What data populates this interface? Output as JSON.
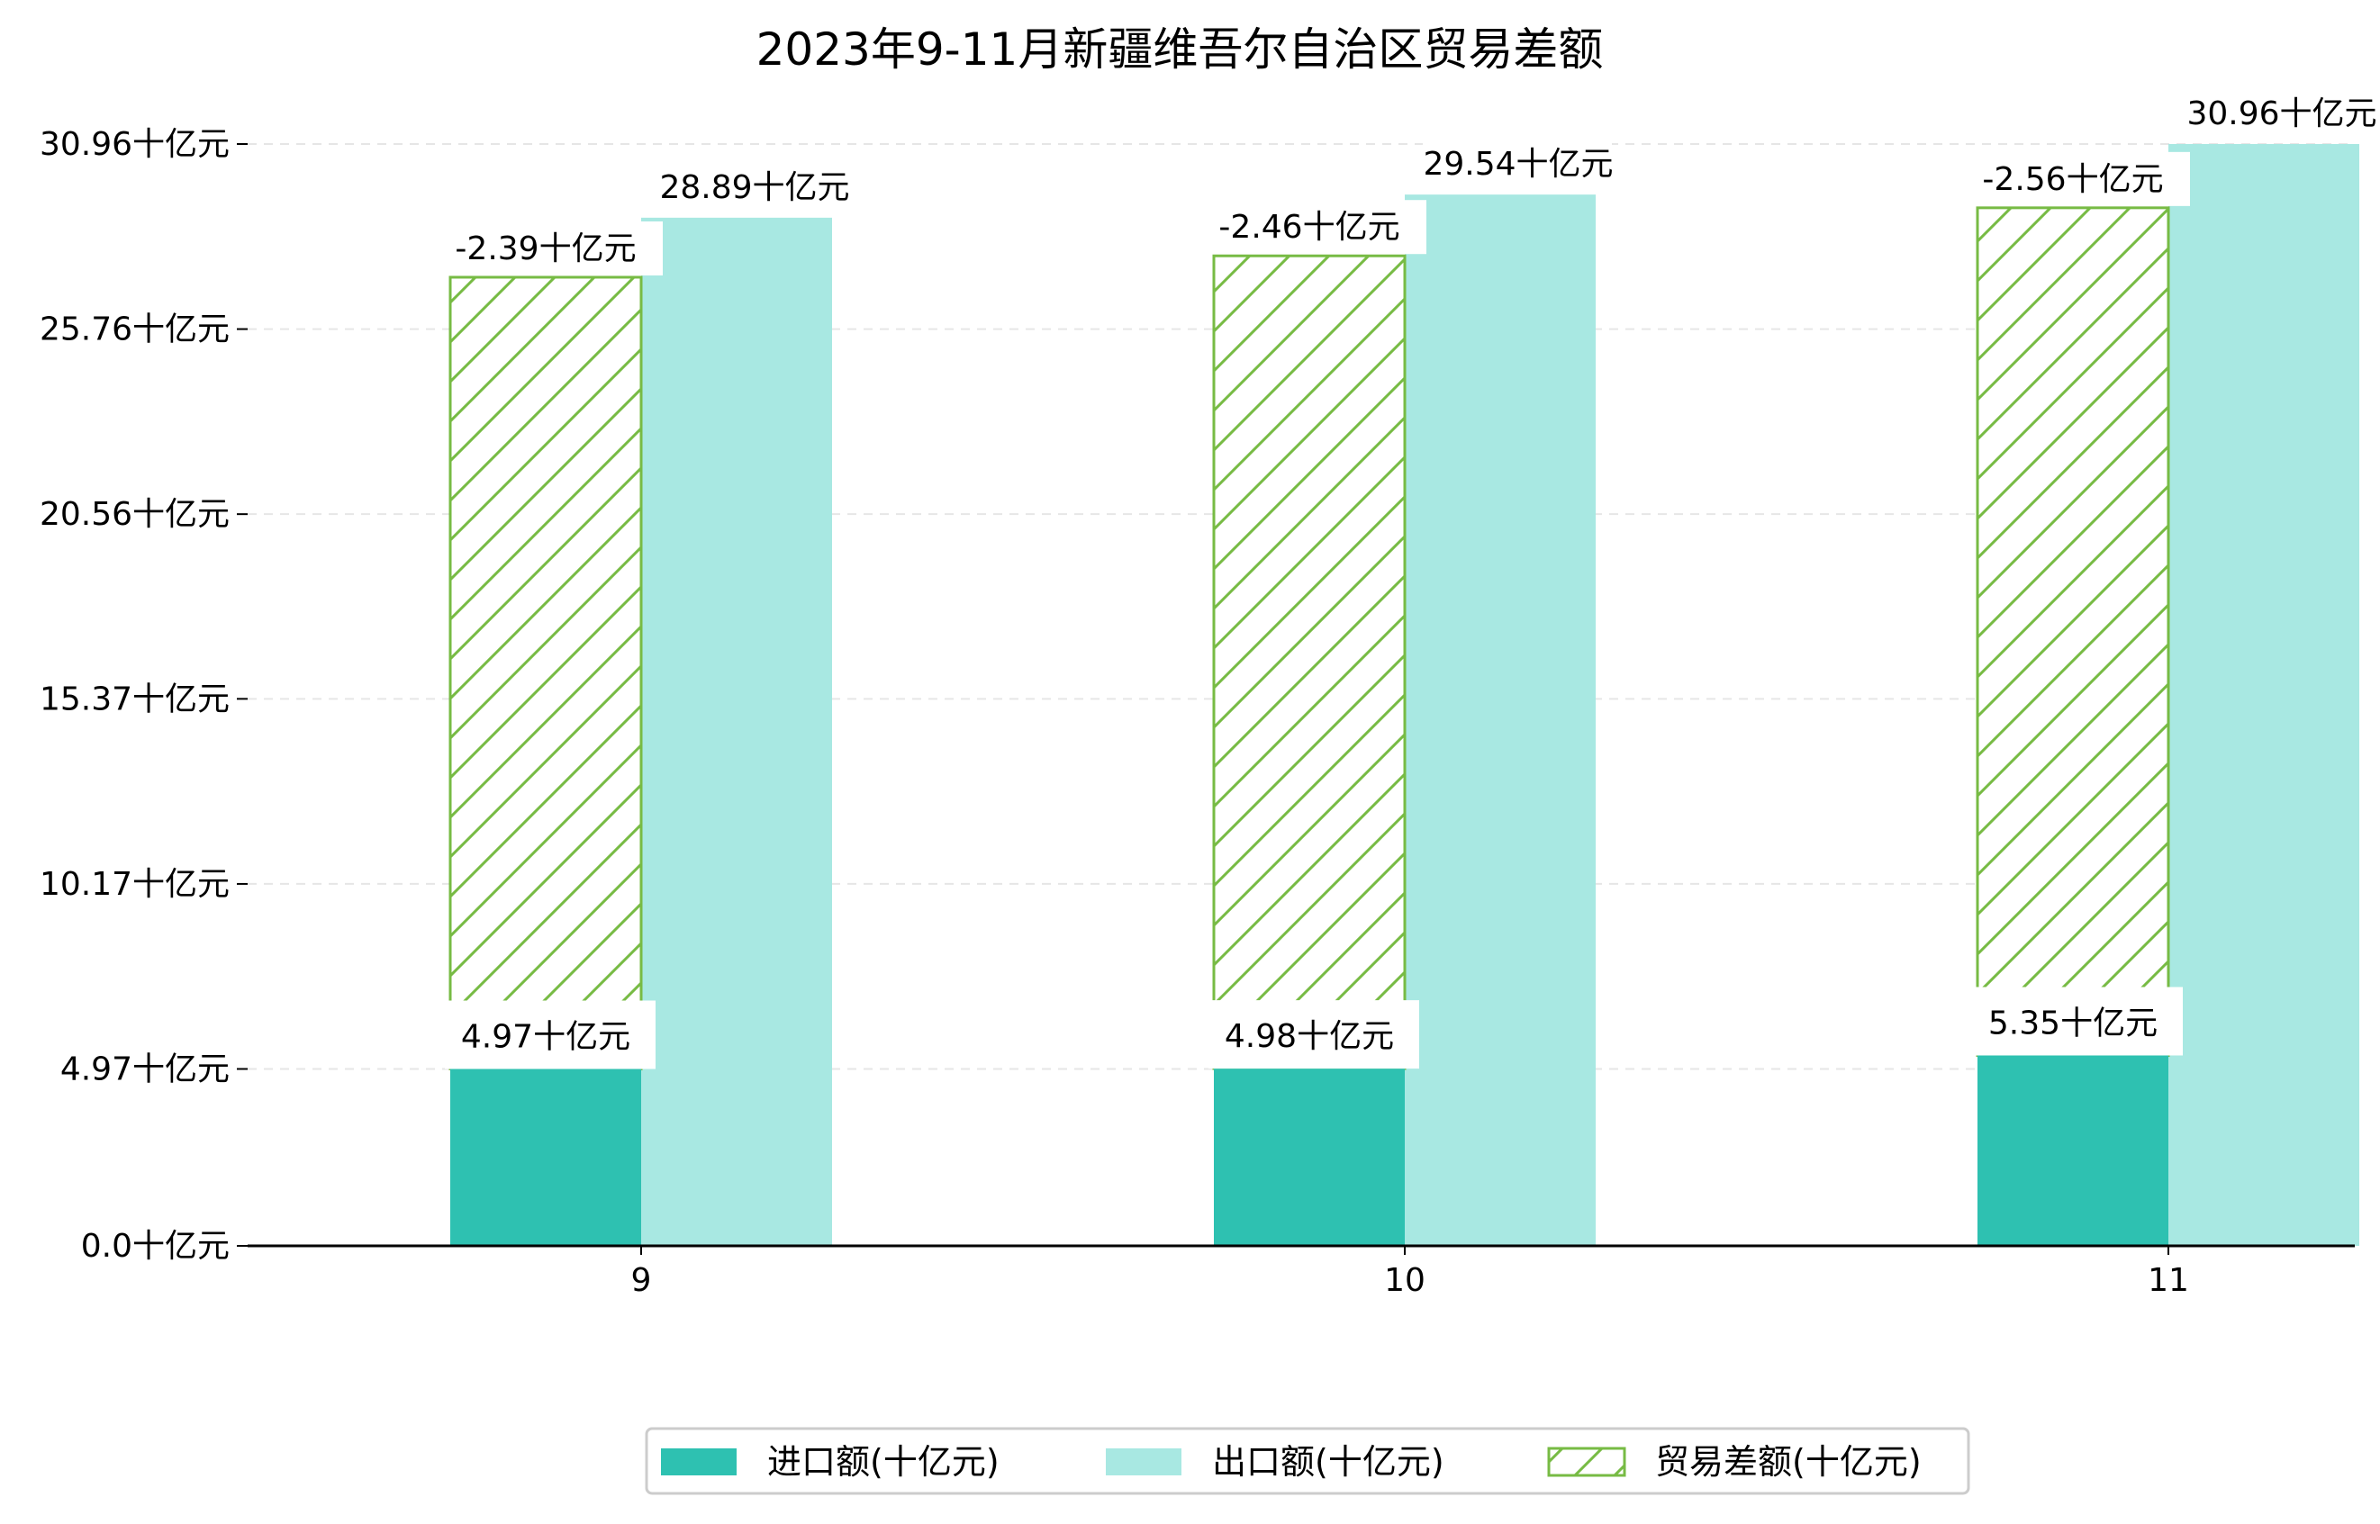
{
  "chart_data": {
    "type": "bar",
    "title": "2023年9-11月新疆维吾尔自治区贸易差额",
    "xlabel": "",
    "ylabel": "",
    "categories": [
      "9",
      "10",
      "11"
    ],
    "y_unit": "十亿元",
    "yticks": [
      0.0,
      4.97,
      10.17,
      15.37,
      20.56,
      25.76,
      30.96
    ],
    "ytick_labels": [
      "0.0十亿元",
      "4.97十亿元",
      "10.17十亿元",
      "15.37十亿元",
      "20.56十亿元",
      "25.76十亿元",
      "30.96十亿元"
    ],
    "ylim": [
      0,
      31.4
    ],
    "grid": true,
    "legend_position": "bottom",
    "series": [
      {
        "name": "进口额(十亿元)",
        "values": [
          4.97,
          4.98,
          5.35
        ],
        "labels": [
          "4.97十亿元",
          "4.98十亿元",
          "5.35十亿元"
        ],
        "color": "#2ec1b1",
        "style": "solid"
      },
      {
        "name": "出口额(十亿元)",
        "values": [
          28.89,
          29.54,
          30.96
        ],
        "labels": [
          "28.89十亿元",
          "29.54十亿元",
          "30.96十亿元"
        ],
        "color": "#a8e8e2",
        "style": "solid"
      },
      {
        "name": "贸易差额(十亿元)",
        "values": [
          -2.39,
          -2.46,
          -2.56
        ],
        "labels": [
          "-2.39十亿元",
          "-2.46十亿元",
          "-2.56十亿元"
        ],
        "color": "#77bb44",
        "style": "hatch"
      }
    ]
  }
}
